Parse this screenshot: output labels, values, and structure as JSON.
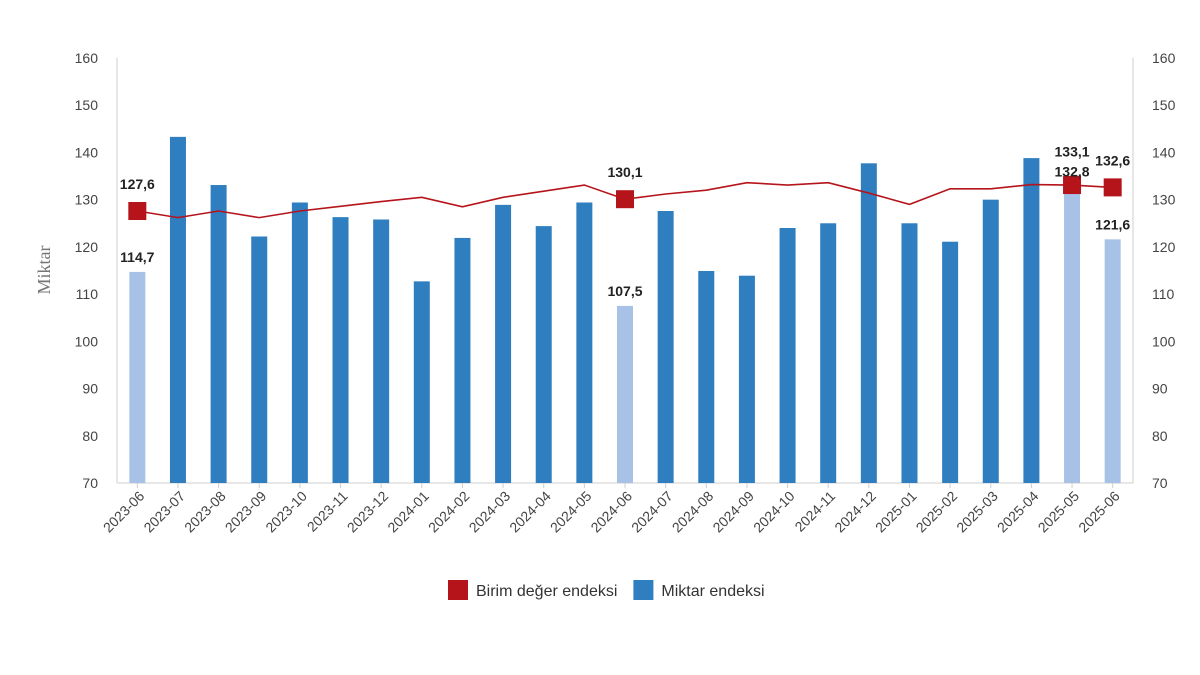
{
  "chart_data": {
    "type": "bar",
    "categories": [
      "2023-06",
      "2023-07",
      "2023-08",
      "2023-09",
      "2023-10",
      "2023-11",
      "2023-12",
      "2024-01",
      "2024-02",
      "2024-03",
      "2024-04",
      "2024-05",
      "2024-06",
      "2024-07",
      "2024-08",
      "2024-09",
      "2024-10",
      "2024-11",
      "2024-12",
      "2025-01",
      "2025-02",
      "2025-03",
      "2025-04",
      "2025-05",
      "2025-06"
    ],
    "series": [
      {
        "name": "Miktar endeksi",
        "kind": "bar",
        "axis": "left",
        "color": "#2f7ec0",
        "highlight_color": "#a8c1e6",
        "values": [
          114.7,
          143.3,
          133.1,
          122.2,
          129.4,
          126.3,
          125.8,
          112.7,
          121.9,
          128.9,
          124.4,
          129.4,
          107.5,
          127.6,
          114.9,
          113.9,
          124.0,
          125.0,
          137.7,
          125.0,
          121.1,
          130.0,
          138.8,
          132.8,
          121.6
        ],
        "highlighted": [
          true,
          false,
          false,
          false,
          false,
          false,
          false,
          false,
          false,
          false,
          false,
          false,
          true,
          false,
          false,
          false,
          false,
          false,
          false,
          false,
          false,
          false,
          false,
          true,
          true
        ]
      },
      {
        "name": "Birim değer endeksi",
        "kind": "line",
        "axis": "right",
        "color": "#b5141b",
        "values": [
          127.6,
          126.2,
          127.6,
          126.2,
          127.6,
          128.6,
          129.6,
          130.5,
          128.5,
          130.5,
          131.8,
          133.1,
          130.1,
          131.2,
          132.0,
          133.6,
          133.1,
          133.6,
          131.4,
          129.0,
          132.3,
          132.3,
          133.2,
          133.1,
          132.6
        ],
        "markers": [
          0,
          12,
          23,
          24
        ]
      }
    ],
    "data_labels": {
      "bars": [
        {
          "index": 0,
          "text": "114,7"
        },
        {
          "index": 12,
          "text": "107,5"
        },
        {
          "index": 23,
          "text": "132,8"
        },
        {
          "index": 24,
          "text": "121,6"
        }
      ],
      "line": [
        {
          "index": 0,
          "text": "127,6"
        },
        {
          "index": 12,
          "text": "130,1"
        },
        {
          "index": 23,
          "text": "133,1"
        },
        {
          "index": 24,
          "text": "132,6"
        }
      ]
    },
    "ylabel": "Miktar",
    "ylim": [
      70,
      160
    ],
    "yticks": [
      "70",
      "80",
      "90",
      "100",
      "110",
      "120",
      "130",
      "140",
      "150",
      "160"
    ],
    "y2lim": [
      70,
      160
    ],
    "y2ticks": [
      "70",
      "80",
      "90",
      "100",
      "110",
      "120",
      "130",
      "140",
      "150",
      "160"
    ],
    "grid": false,
    "legend_position": "bottom-center",
    "legend": [
      {
        "label": "Birim değer endeksi",
        "color": "#b5141b"
      },
      {
        "label": "Miktar endeksi",
        "color": "#2f7ec0"
      }
    ]
  }
}
